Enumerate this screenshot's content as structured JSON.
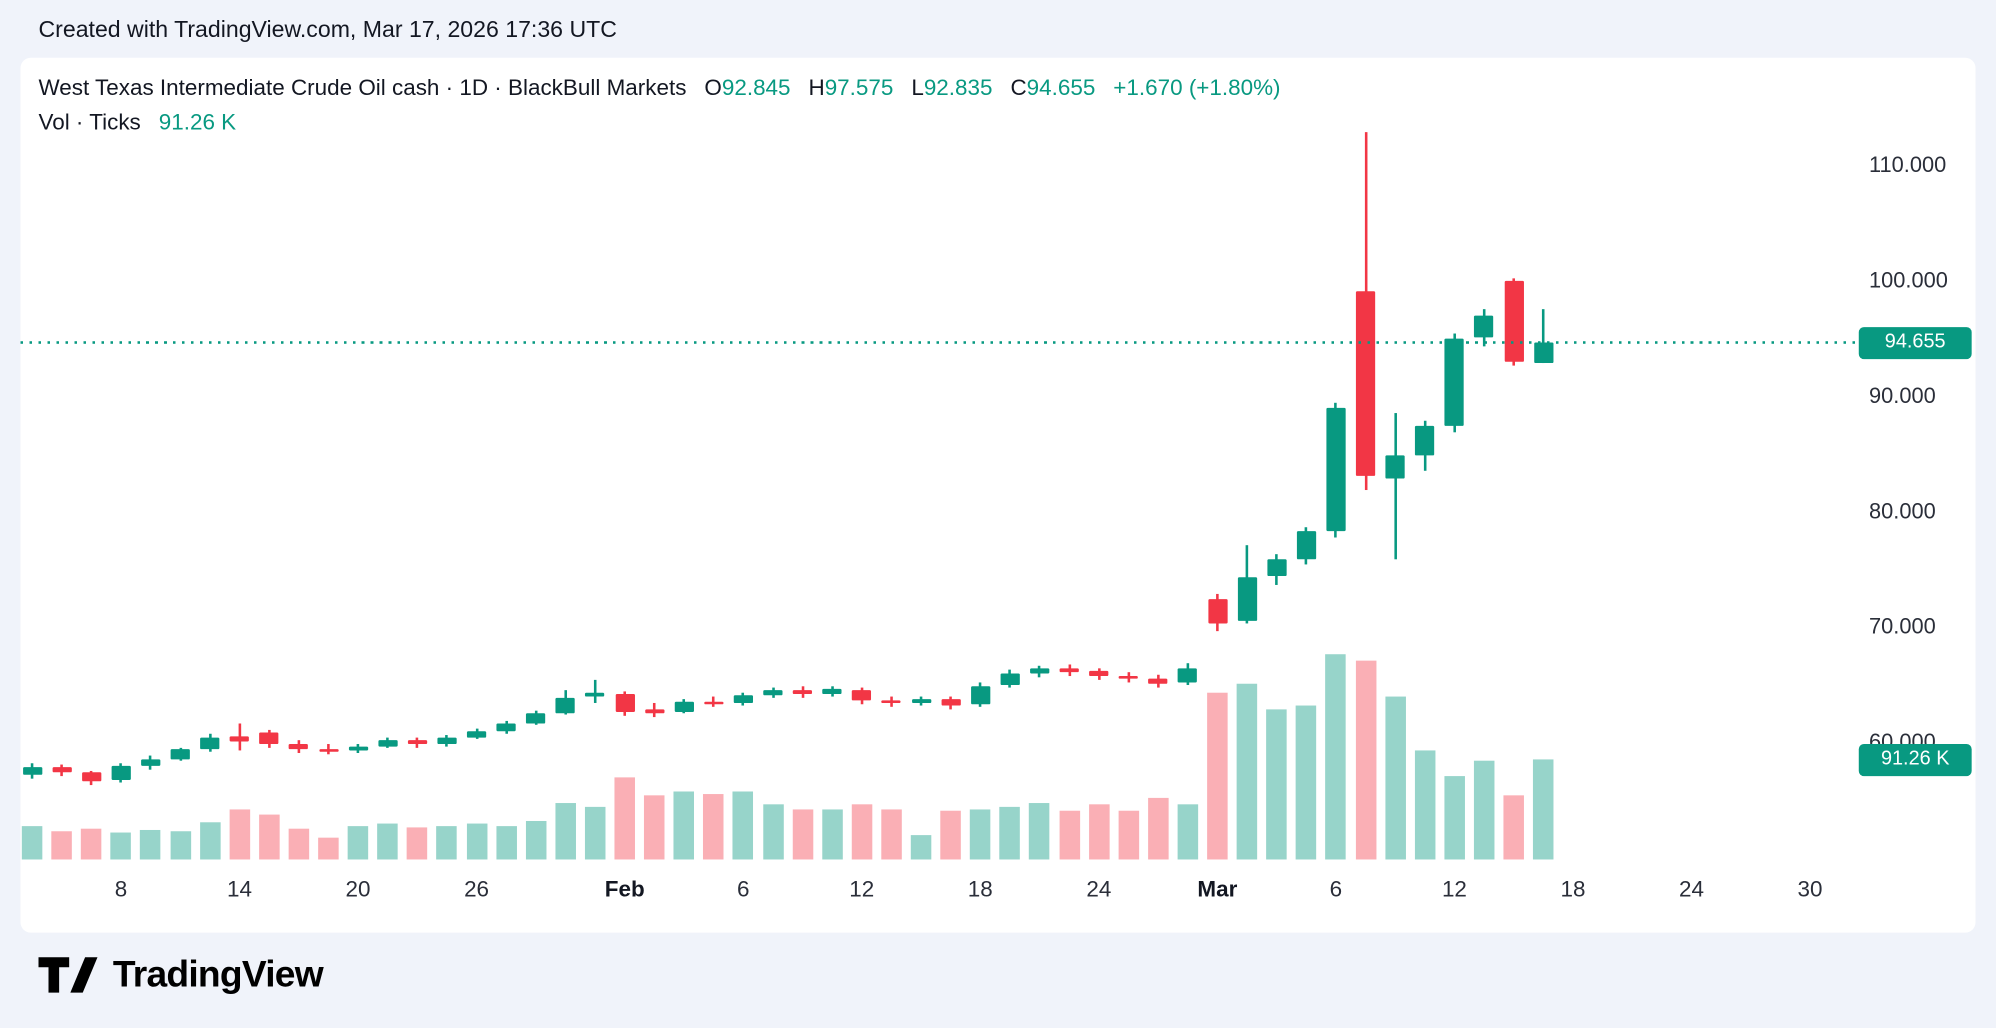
{
  "page": {
    "attribution": "Created with TradingView.com, Mar 17, 2026 17:36 UTC"
  },
  "legend": {
    "symbol_line": "West Texas Intermediate Crude Oil cash · 1D · BlackBull Markets",
    "ohlc": {
      "o_label": "O",
      "o": "92.845",
      "h_label": "H",
      "h": "97.575",
      "l_label": "L",
      "l": "92.835",
      "c_label": "C",
      "c": "94.655",
      "change": "+1.670 (+1.80%)"
    },
    "volume_line": {
      "label": "Vol · Ticks",
      "value": "91.26 K"
    }
  },
  "badges": {
    "price": "94.655",
    "volume": "91.26 K"
  },
  "footer": {
    "brand": "TradingView"
  },
  "colors": {
    "up": "#089981",
    "down": "#f23645",
    "up_volume": "rgba(8,153,129,0.42)",
    "down_volume": "rgba(242,54,69,0.40)",
    "accent": "#089981",
    "text": "#131722",
    "background": "#f0f3fa"
  },
  "axes": {
    "price_labels": [
      {
        "label": "110.000",
        "value": 110
      },
      {
        "label": "100.000",
        "value": 100
      },
      {
        "label": "90.000",
        "value": 90
      },
      {
        "label": "80.000",
        "value": 80
      },
      {
        "label": "70.000",
        "value": 70
      },
      {
        "label": "60.000",
        "value": 60
      }
    ],
    "time_ticks": [
      {
        "label": "8",
        "i": 3,
        "bold": false
      },
      {
        "label": "14",
        "i": 7,
        "bold": false
      },
      {
        "label": "20",
        "i": 11,
        "bold": false
      },
      {
        "label": "26",
        "i": 15,
        "bold": false
      },
      {
        "label": "Feb",
        "i": 20,
        "bold": true
      },
      {
        "label": "6",
        "i": 24,
        "bold": false
      },
      {
        "label": "12",
        "i": 28,
        "bold": false
      },
      {
        "label": "18",
        "i": 32,
        "bold": false
      },
      {
        "label": "24",
        "i": 36,
        "bold": false
      },
      {
        "label": "Mar",
        "i": 40,
        "bold": true
      },
      {
        "label": "6",
        "i": 44,
        "bold": false
      },
      {
        "label": "12",
        "i": 48,
        "bold": false
      },
      {
        "label": "18",
        "i": 52,
        "bold": false
      },
      {
        "label": "24",
        "i": 56,
        "bold": false
      },
      {
        "label": "30",
        "i": 60,
        "bold": false
      }
    ]
  },
  "chart_data": {
    "type": "candlestick",
    "title": "West Texas Intermediate Crude Oil cash",
    "interval": "1D",
    "provider": "BlackBull Markets",
    "volume_unit": "K ticks",
    "last_price": 94.655,
    "last_volume_k": 91.26,
    "price_axis_range": [
      55,
      115
    ],
    "grid": false,
    "series": [
      {
        "d": "Jan 5",
        "o": 57.2,
        "h": 58.2,
        "l": 56.9,
        "c": 57.9,
        "v": 30
      },
      {
        "d": "Jan 6",
        "o": 57.9,
        "h": 58.1,
        "l": 57.1,
        "c": 57.4,
        "v": 26
      },
      {
        "d": "Jan 7",
        "o": 57.4,
        "h": 57.6,
        "l": 56.3,
        "c": 56.7,
        "v": 28
      },
      {
        "d": "Jan 8",
        "o": 56.8,
        "h": 58.2,
        "l": 56.6,
        "c": 58.0,
        "v": 24
      },
      {
        "d": "Jan 9",
        "o": 58.0,
        "h": 58.9,
        "l": 57.7,
        "c": 58.6,
        "v": 27
      },
      {
        "d": "Jan 12",
        "o": 58.6,
        "h": 59.6,
        "l": 58.4,
        "c": 59.4,
        "v": 26
      },
      {
        "d": "Jan 13",
        "o": 59.4,
        "h": 60.8,
        "l": 59.2,
        "c": 60.5,
        "v": 34
      },
      {
        "d": "Jan 14",
        "o": 60.6,
        "h": 61.7,
        "l": 59.3,
        "c": 60.1,
        "v": 46
      },
      {
        "d": "Jan 15",
        "o": 60.9,
        "h": 61.1,
        "l": 59.6,
        "c": 59.9,
        "v": 41
      },
      {
        "d": "Jan 16",
        "o": 59.9,
        "h": 60.2,
        "l": 59.1,
        "c": 59.4,
        "v": 28
      },
      {
        "d": "Jan 19",
        "o": 59.5,
        "h": 59.9,
        "l": 59.0,
        "c": 59.3,
        "v": 20
      },
      {
        "d": "Jan 20",
        "o": 59.3,
        "h": 59.9,
        "l": 59.1,
        "c": 59.7,
        "v": 30
      },
      {
        "d": "Jan 21",
        "o": 59.7,
        "h": 60.4,
        "l": 59.5,
        "c": 60.2,
        "v": 33
      },
      {
        "d": "Jan 22",
        "o": 60.2,
        "h": 60.5,
        "l": 59.6,
        "c": 59.9,
        "v": 29
      },
      {
        "d": "Jan 23",
        "o": 59.9,
        "h": 60.7,
        "l": 59.7,
        "c": 60.5,
        "v": 31
      },
      {
        "d": "Jan 26",
        "o": 60.5,
        "h": 61.2,
        "l": 60.3,
        "c": 61.0,
        "v": 33
      },
      {
        "d": "Jan 27",
        "o": 61.0,
        "h": 61.9,
        "l": 60.8,
        "c": 61.7,
        "v": 30
      },
      {
        "d": "Jan 28",
        "o": 61.7,
        "h": 62.8,
        "l": 61.5,
        "c": 62.6,
        "v": 35
      },
      {
        "d": "Jan 29",
        "o": 62.6,
        "h": 64.6,
        "l": 62.4,
        "c": 63.9,
        "v": 52
      },
      {
        "d": "Jan 30",
        "o": 64.0,
        "h": 65.4,
        "l": 63.4,
        "c": 64.3,
        "v": 48
      },
      {
        "d": "Feb 2",
        "o": 64.2,
        "h": 64.5,
        "l": 62.3,
        "c": 62.7,
        "v": 75
      },
      {
        "d": "Feb 3",
        "o": 62.9,
        "h": 63.4,
        "l": 62.2,
        "c": 62.6,
        "v": 58
      },
      {
        "d": "Feb 4",
        "o": 62.7,
        "h": 63.8,
        "l": 62.5,
        "c": 63.6,
        "v": 62
      },
      {
        "d": "Feb 5",
        "o": 63.6,
        "h": 64.0,
        "l": 63.1,
        "c": 63.4,
        "v": 60
      },
      {
        "d": "Feb 6",
        "o": 63.4,
        "h": 64.3,
        "l": 63.2,
        "c": 64.1,
        "v": 62
      },
      {
        "d": "Feb 9",
        "o": 64.1,
        "h": 64.8,
        "l": 63.9,
        "c": 64.6,
        "v": 50
      },
      {
        "d": "Feb 10",
        "o": 64.6,
        "h": 64.9,
        "l": 63.9,
        "c": 64.2,
        "v": 46
      },
      {
        "d": "Feb 11",
        "o": 64.2,
        "h": 64.9,
        "l": 64.0,
        "c": 64.7,
        "v": 46
      },
      {
        "d": "Feb 12",
        "o": 64.6,
        "h": 64.8,
        "l": 63.3,
        "c": 63.7,
        "v": 50
      },
      {
        "d": "Feb 13",
        "o": 63.7,
        "h": 64.0,
        "l": 63.1,
        "c": 63.4,
        "v": 46
      },
      {
        "d": "Feb 16",
        "o": 63.4,
        "h": 64.0,
        "l": 63.2,
        "c": 63.8,
        "v": 22
      },
      {
        "d": "Feb 17",
        "o": 63.8,
        "h": 64.0,
        "l": 62.9,
        "c": 63.2,
        "v": 44
      },
      {
        "d": "Feb 18",
        "o": 63.3,
        "h": 65.2,
        "l": 63.1,
        "c": 64.9,
        "v": 46
      },
      {
        "d": "Feb 19",
        "o": 65.0,
        "h": 66.3,
        "l": 64.8,
        "c": 66.0,
        "v": 48
      },
      {
        "d": "Feb 20",
        "o": 66.0,
        "h": 66.7,
        "l": 65.7,
        "c": 66.4,
        "v": 52
      },
      {
        "d": "Feb 23",
        "o": 66.4,
        "h": 66.8,
        "l": 65.8,
        "c": 66.1,
        "v": 44
      },
      {
        "d": "Feb 24",
        "o": 66.2,
        "h": 66.5,
        "l": 65.5,
        "c": 65.8,
        "v": 50
      },
      {
        "d": "Feb 25",
        "o": 65.8,
        "h": 66.1,
        "l": 65.2,
        "c": 65.5,
        "v": 44
      },
      {
        "d": "Feb 26",
        "o": 65.6,
        "h": 65.9,
        "l": 64.8,
        "c": 65.1,
        "v": 56
      },
      {
        "d": "Feb 27",
        "o": 65.2,
        "h": 66.9,
        "l": 65.0,
        "c": 66.4,
        "v": 50
      },
      {
        "d": "Mar 2",
        "o": 72.4,
        "h": 72.9,
        "l": 69.7,
        "c": 70.3,
        "v": 152
      },
      {
        "d": "Mar 3",
        "o": 70.6,
        "h": 77.1,
        "l": 70.3,
        "c": 74.3,
        "v": 160
      },
      {
        "d": "Mar 4",
        "o": 74.4,
        "h": 76.3,
        "l": 73.7,
        "c": 75.9,
        "v": 137
      },
      {
        "d": "Mar 5",
        "o": 75.9,
        "h": 78.7,
        "l": 75.4,
        "c": 78.3,
        "v": 140
      },
      {
        "d": "Mar 6",
        "o": 78.3,
        "h": 89.5,
        "l": 77.8,
        "c": 89.0,
        "v": 187
      },
      {
        "d": "Mar 9",
        "o": 99.1,
        "h": 112.9,
        "l": 81.9,
        "c": 83.1,
        "v": 181
      },
      {
        "d": "Mar 10",
        "o": 82.9,
        "h": 88.6,
        "l": 75.9,
        "c": 84.9,
        "v": 149
      },
      {
        "d": "Mar 11",
        "o": 84.9,
        "h": 87.9,
        "l": 83.6,
        "c": 87.4,
        "v": 100
      },
      {
        "d": "Mar 12",
        "o": 87.4,
        "h": 95.4,
        "l": 86.9,
        "c": 95.0,
        "v": 76
      },
      {
        "d": "Mar 13",
        "o": 95.1,
        "h": 97.6,
        "l": 94.3,
        "c": 97.0,
        "v": 90
      },
      {
        "d": "Mar 16",
        "o": 100.0,
        "h": 100.2,
        "l": 92.7,
        "c": 92.985,
        "v": 59
      },
      {
        "d": "Mar 17",
        "o": 92.845,
        "h": 97.575,
        "l": 92.835,
        "c": 94.655,
        "v": 91.26
      }
    ]
  }
}
